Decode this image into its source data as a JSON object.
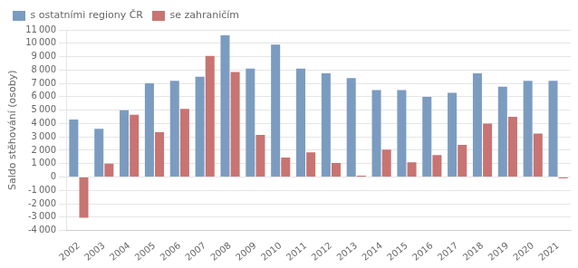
{
  "chart_data": {
    "type": "bar",
    "categories": [
      2002,
      2003,
      2004,
      2005,
      2006,
      2007,
      2008,
      2009,
      2010,
      2011,
      2012,
      2013,
      2014,
      2015,
      2016,
      2017,
      2018,
      2019,
      2020,
      2021
    ],
    "series": [
      {
        "name": "s ostatními regiony ČR",
        "color": "#7B9CC0",
        "values": [
          4300,
          3600,
          5000,
          7000,
          7200,
          7500,
          10600,
          8100,
          9900,
          8100,
          7750,
          7400,
          6500,
          6500,
          6000,
          6300,
          7750,
          6750,
          7200,
          7200
        ]
      },
      {
        "name": "se zahraničím",
        "color": "#C87472",
        "values": [
          -3050,
          1000,
          4650,
          3350,
          5100,
          9050,
          7850,
          3150,
          1450,
          1850,
          1050,
          100,
          2050,
          1100,
          1650,
          2400,
          4000,
          4500,
          3250,
          -100
        ]
      }
    ],
    "ylabel": "Saldo stěhování (osoby)",
    "ylim": [
      -4000,
      11000
    ],
    "yticks": [
      {
        "value": -4000,
        "label": "-4 000"
      },
      {
        "value": -3000,
        "label": "-3 000"
      },
      {
        "value": -2000,
        "label": "-2 000"
      },
      {
        "value": -1000,
        "label": "-1 000"
      },
      0,
      {
        "value": 1000,
        "label": "1 000"
      },
      {
        "value": 2000,
        "label": "2 000"
      },
      {
        "value": 3000,
        "label": "3 000"
      },
      {
        "value": 4000,
        "label": "4 000"
      },
      {
        "value": 5000,
        "label": "5 000"
      },
      {
        "value": 6000,
        "label": "6 000"
      },
      {
        "value": 7000,
        "label": "7 000"
      },
      {
        "value": 8000,
        "label": "8 000"
      },
      {
        "value": 9000,
        "label": "9 000"
      },
      {
        "value": 10000,
        "label": "10 000"
      },
      {
        "value": 11000,
        "label": "11 000"
      }
    ],
    "grid": true,
    "legend": "upper left"
  }
}
